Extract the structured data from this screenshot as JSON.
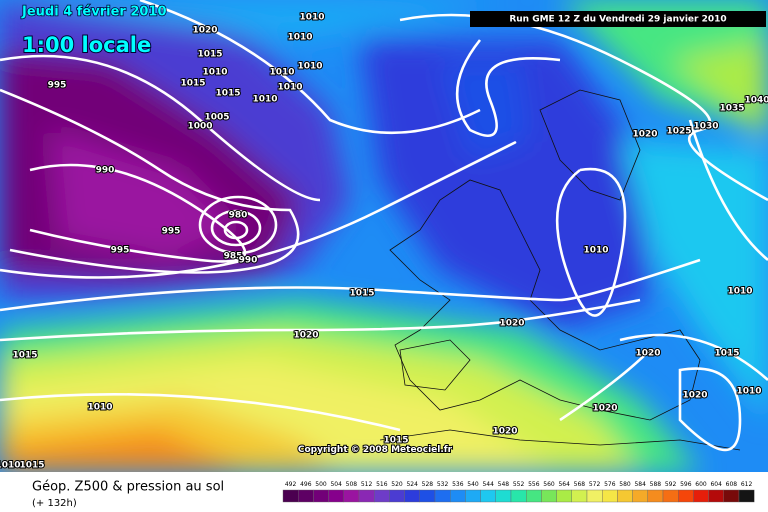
{
  "header": {
    "date": "Jeudi 4 février 2010",
    "time": "1:00 locale",
    "run": "Run GME 12 Z du Vendredi 29 janvier 2010"
  },
  "copyright": "Copyright © 2008 Meteociel.fr",
  "footer": {
    "title": "Géop. Z500 & pression au sol",
    "lead": "(+ 132h)"
  },
  "legend": {
    "labels": [
      492,
      496,
      500,
      504,
      508,
      512,
      516,
      520,
      524,
      528,
      532,
      536,
      540,
      544,
      548,
      552,
      556,
      560,
      564,
      568,
      572,
      576,
      580,
      584,
      588,
      592,
      596,
      600,
      604,
      608,
      612
    ],
    "colors": [
      "#4b0050",
      "#5e0064",
      "#720078",
      "#86008c",
      "#9a14a0",
      "#8a28b4",
      "#6e3cc8",
      "#4b3cd2",
      "#2d3cdc",
      "#1e50e6",
      "#1e6ef0",
      "#1e8cf5",
      "#1eaaf5",
      "#1ec8f0",
      "#1edcd2",
      "#28e6aa",
      "#46e682",
      "#78e65a",
      "#aaeb46",
      "#d2f050",
      "#f0f064",
      "#f5e646",
      "#f5c832",
      "#f5aa28",
      "#f58c1e",
      "#f56e14",
      "#f5460a",
      "#e61e0a",
      "#b40a0a",
      "#780a0a",
      "#141414"
    ]
  },
  "isobars": [
    "1010",
    "1020",
    "1010",
    "1015",
    "1010",
    "1010",
    "1010",
    "1015",
    "1010",
    "1015",
    "1010",
    "1005",
    "1000",
    "995",
    "990",
    "995",
    "980",
    "985",
    "990",
    "995",
    "1015",
    "1020",
    "1015",
    "1010",
    "1015",
    "1020",
    "1020",
    "1010",
    "1020",
    "1025",
    "1030",
    "1035",
    "1040",
    "1010",
    "1020",
    "1015",
    "1020",
    "1010",
    "1020",
    "1015",
    "1010"
  ]
}
